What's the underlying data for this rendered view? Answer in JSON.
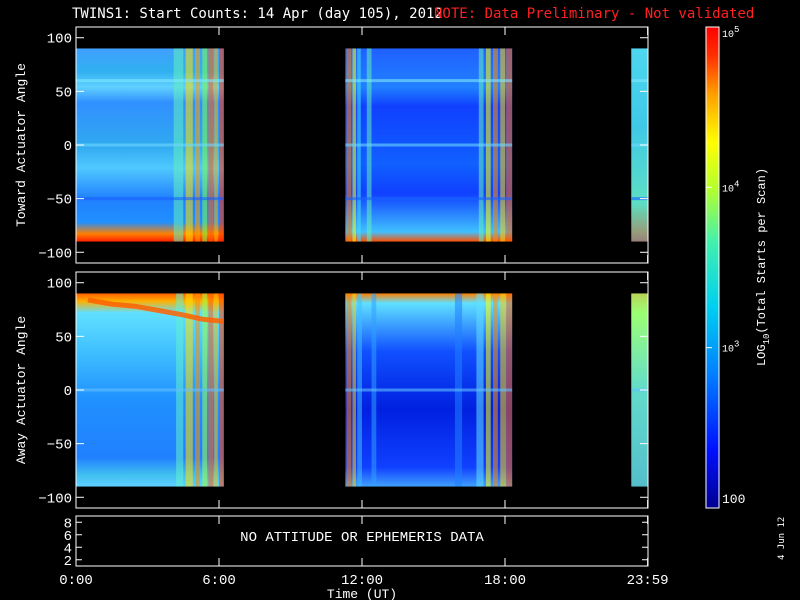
{
  "title": "TWINS1: Start Counts: 14 Apr (day 105), 2012",
  "note": "NOTE: Data Preliminary - Not validated",
  "date_stamp": "4 Jun 12",
  "chart_data": [
    {
      "type": "heatmap",
      "ylabel": "Toward Actuator Angle",
      "yticks": [
        "100",
        "50",
        "0",
        "-50",
        "-100"
      ],
      "ylim": [
        -110,
        110
      ],
      "data_yrange": [
        -90,
        90
      ],
      "xlim_hours": [
        0,
        24
      ],
      "data_intervals_hours": [
        [
          0.0,
          6.2
        ],
        [
          11.3,
          18.3
        ],
        [
          23.3,
          24.0
        ]
      ],
      "colormap": "rainbow (blue to red)",
      "notes": "Bands near +60 and 0 deg; high counts near -85 deg; red/orange vertical stripes around 4.5-6.2 h and 11.3-12 h, 17-18 h"
    },
    {
      "type": "heatmap",
      "ylabel": "Away Actuator Angle",
      "yticks": [
        "100",
        "50",
        "0",
        "-50",
        "-100"
      ],
      "ylim": [
        -110,
        110
      ],
      "data_yrange": [
        -90,
        90
      ],
      "xlim_hours": [
        0,
        24
      ],
      "data_intervals_hours": [
        [
          0.0,
          6.2
        ],
        [
          11.3,
          18.3
        ],
        [
          23.3,
          24.0
        ]
      ],
      "colormap": "rainbow (blue to red)",
      "notes": "High counts near +85 deg; curved red/orange band from 75 to 65 deg near 3-5 h; band near -85 deg"
    },
    {
      "type": "table",
      "yticks": [
        "8",
        "6",
        "4",
        "2"
      ],
      "ylim": [
        1,
        9
      ],
      "message": "NO ATTITUDE OR EPHEMERIS DATA"
    }
  ],
  "xaxis": {
    "ticks": [
      "0:00",
      "6:00",
      "12:00",
      "18:00",
      "23:59"
    ],
    "tick_hours": [
      0,
      6,
      12,
      18,
      23.983
    ],
    "label": "Time (UT)"
  },
  "colorbar": {
    "label": "LOG10(Total Starts per Scan)",
    "min_label": "100",
    "mid_labels": [
      "10^3",
      "10^4"
    ],
    "max_label": "10^5",
    "log_range": [
      2,
      5
    ],
    "colors": [
      "#0000a0",
      "#0000ff",
      "#0060ff",
      "#00c8ff",
      "#30e0c0",
      "#a0ff40",
      "#ffff00",
      "#ffa000",
      "#ff3000",
      "#ff0000"
    ]
  }
}
